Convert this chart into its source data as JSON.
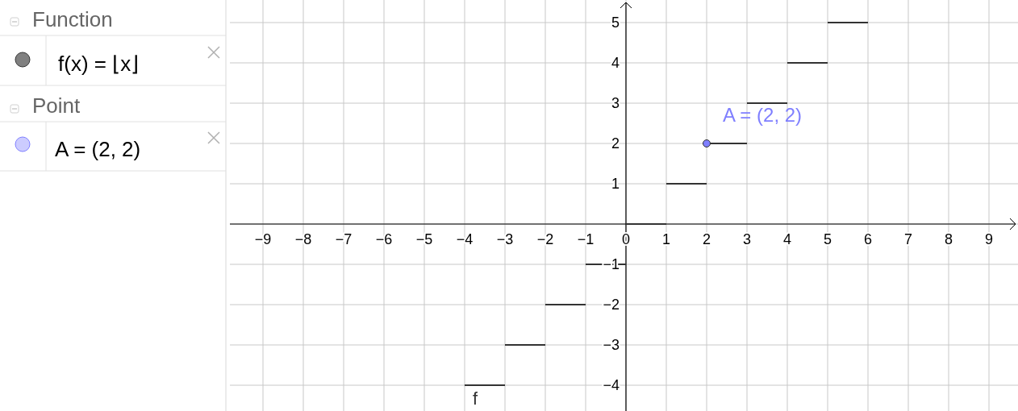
{
  "chart_data": {
    "type": "line",
    "xlim": [
      -9.82,
      9.72
    ],
    "ylim": [
      -4.64,
      5.56
    ],
    "xticks": [
      {
        "value": -9,
        "label": "−9"
      },
      {
        "value": -8,
        "label": "−8"
      },
      {
        "value": -7,
        "label": "−7"
      },
      {
        "value": -6,
        "label": "−6"
      },
      {
        "value": -5,
        "label": "−5"
      },
      {
        "value": -4,
        "label": "−4"
      },
      {
        "value": -3,
        "label": "−3"
      },
      {
        "value": -2,
        "label": "−2"
      },
      {
        "value": -1,
        "label": "−1"
      },
      0,
      1,
      2,
      3,
      4,
      5,
      6,
      7,
      8,
      9
    ],
    "yticks": [
      {
        "value": -4,
        "label": "−4"
      },
      {
        "value": -3,
        "label": "−3"
      },
      {
        "value": -2,
        "label": "−2"
      },
      {
        "value": -1,
        "label": "−1"
      },
      {
        "value": 0,
        "label": null
      },
      1,
      2,
      3,
      4,
      5
    ],
    "grid": true,
    "series": [
      {
        "name": "f",
        "color": "#333333",
        "x": [
          -4,
          -3
        ],
        "values": [
          -4,
          -4
        ]
      },
      {
        "color": "#333333",
        "x": [
          -3,
          -2
        ],
        "values": [
          -3,
          -3
        ]
      },
      {
        "color": "#333333",
        "x": [
          -2,
          -1
        ],
        "values": [
          -2,
          -2
        ]
      },
      {
        "color": "#333333",
        "x": [
          -1,
          0
        ],
        "values": [
          -1,
          -1
        ]
      },
      {
        "color": "#333333",
        "x": [
          0,
          1
        ],
        "values": [
          0,
          0
        ]
      },
      {
        "color": "#333333",
        "x": [
          1,
          2
        ],
        "values": [
          1,
          1
        ]
      },
      {
        "color": "#333333",
        "x": [
          2,
          3
        ],
        "values": [
          2,
          2
        ]
      },
      {
        "color": "#333333",
        "x": [
          3,
          4
        ],
        "values": [
          3,
          3
        ]
      },
      {
        "color": "#333333",
        "x": [
          4,
          5
        ],
        "values": [
          4,
          4
        ]
      },
      {
        "color": "#333333",
        "x": [
          5,
          6
        ],
        "values": [
          5,
          5
        ]
      },
      {
        "type": "scatter",
        "color": "#7f7fff",
        "x": [
          2
        ],
        "values": [
          2
        ],
        "marker": "circle"
      }
    ],
    "annotations": [
      "Function",
      "f(x) = ⌊x⌋",
      "Point",
      "A = (2, 2)",
      {
        "text": "A = (2, 2)",
        "x": 2,
        "y": 2
      }
    ]
  }
}
